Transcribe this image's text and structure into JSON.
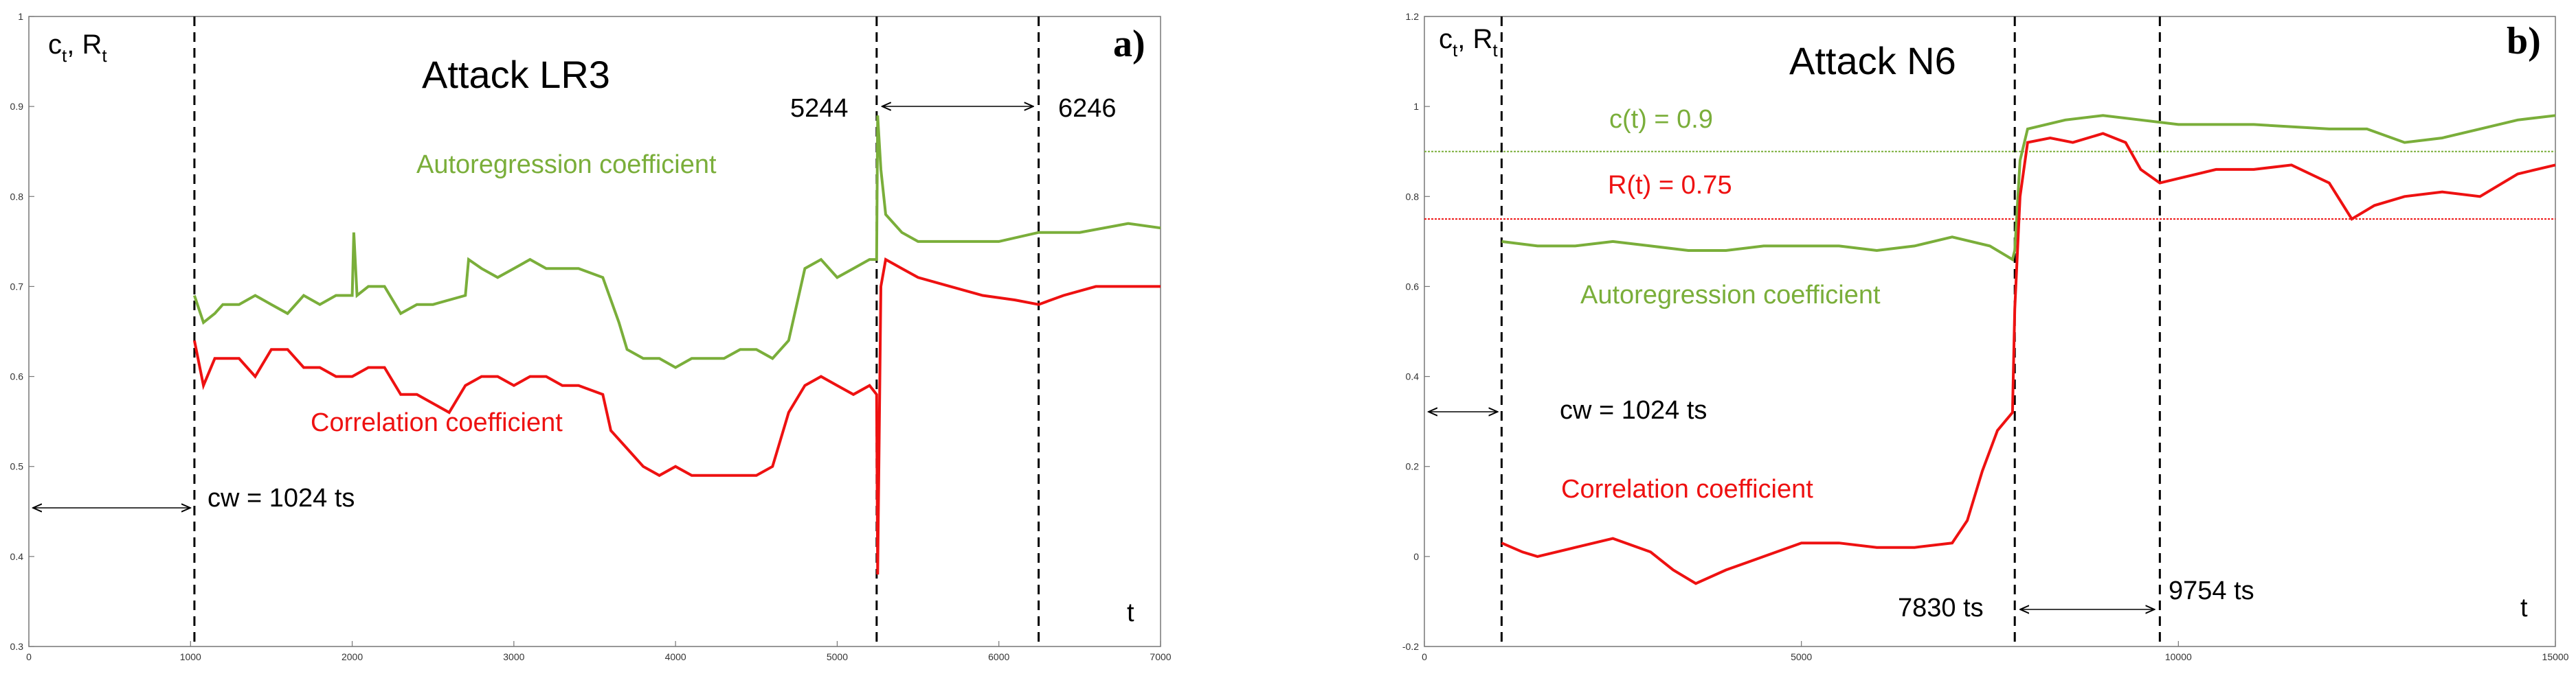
{
  "colors": {
    "green": "#7aae3a",
    "red": "#ee1111",
    "axis": "#555555",
    "ink": "#000000"
  },
  "chart_data": [
    {
      "type": "line",
      "panel_label": "a)",
      "title": "Attack  LR3",
      "ylabel_main": "c",
      "ylabel_sub1": "t",
      "ylabel_mid": ", R",
      "ylabel_sub2": "t",
      "xlabel": "t",
      "xlim": [
        0,
        7000
      ],
      "ylim": [
        0.3,
        1.0
      ],
      "x_ticks": [
        0,
        1000,
        2000,
        3000,
        4000,
        5000,
        6000,
        7000
      ],
      "x_tick_labels": [
        "0",
        "1000",
        "2000",
        "3000",
        "4000",
        "5000",
        "6000",
        "7000"
      ],
      "y_ticks": [
        0.3,
        0.4,
        0.5,
        0.6,
        0.7,
        0.8,
        0.9,
        1.0
      ],
      "y_tick_labels": [
        "0.3",
        "0.4",
        "0.5",
        "0.6",
        "0.7",
        "0.8",
        "0.9",
        "1"
      ],
      "vlines": [
        1024,
        5244,
        6246
      ],
      "series": [
        {
          "name": "Autoregression coefficient",
          "color": "#7aae3a",
          "points": [
            [
              1024,
              0.69
            ],
            [
              1080,
              0.66
            ],
            [
              1150,
              0.67
            ],
            [
              1200,
              0.68
            ],
            [
              1300,
              0.68
            ],
            [
              1400,
              0.69
            ],
            [
              1500,
              0.68
            ],
            [
              1600,
              0.67
            ],
            [
              1700,
              0.69
            ],
            [
              1800,
              0.68
            ],
            [
              1900,
              0.69
            ],
            [
              2000,
              0.69
            ],
            [
              2010,
              0.76
            ],
            [
              2030,
              0.69
            ],
            [
              2100,
              0.7
            ],
            [
              2200,
              0.7
            ],
            [
              2300,
              0.67
            ],
            [
              2400,
              0.68
            ],
            [
              2500,
              0.68
            ],
            [
              2700,
              0.69
            ],
            [
              2720,
              0.73
            ],
            [
              2800,
              0.72
            ],
            [
              2900,
              0.71
            ],
            [
              3000,
              0.72
            ],
            [
              3100,
              0.73
            ],
            [
              3200,
              0.72
            ],
            [
              3300,
              0.72
            ],
            [
              3400,
              0.72
            ],
            [
              3550,
              0.71
            ],
            [
              3650,
              0.66
            ],
            [
              3700,
              0.63
            ],
            [
              3800,
              0.62
            ],
            [
              3900,
              0.62
            ],
            [
              4000,
              0.61
            ],
            [
              4100,
              0.62
            ],
            [
              4200,
              0.62
            ],
            [
              4300,
              0.62
            ],
            [
              4400,
              0.63
            ],
            [
              4500,
              0.63
            ],
            [
              4600,
              0.62
            ],
            [
              4700,
              0.64
            ],
            [
              4800,
              0.72
            ],
            [
              4900,
              0.73
            ],
            [
              5000,
              0.71
            ],
            [
              5100,
              0.72
            ],
            [
              5200,
              0.73
            ],
            [
              5244,
              0.73
            ],
            [
              5250,
              0.89
            ],
            [
              5270,
              0.83
            ],
            [
              5300,
              0.78
            ],
            [
              5400,
              0.76
            ],
            [
              5500,
              0.75
            ],
            [
              5600,
              0.75
            ],
            [
              5800,
              0.75
            ],
            [
              6000,
              0.75
            ],
            [
              6246,
              0.76
            ],
            [
              6500,
              0.76
            ],
            [
              6800,
              0.77
            ],
            [
              7000,
              0.765
            ]
          ]
        },
        {
          "name": "Correlation coefficient",
          "color": "#ee1111",
          "points": [
            [
              1024,
              0.64
            ],
            [
              1080,
              0.59
            ],
            [
              1150,
              0.62
            ],
            [
              1300,
              0.62
            ],
            [
              1400,
              0.6
            ],
            [
              1500,
              0.63
            ],
            [
              1600,
              0.63
            ],
            [
              1700,
              0.61
            ],
            [
              1800,
              0.61
            ],
            [
              1900,
              0.6
            ],
            [
              2000,
              0.6
            ],
            [
              2100,
              0.61
            ],
            [
              2200,
              0.61
            ],
            [
              2300,
              0.58
            ],
            [
              2400,
              0.58
            ],
            [
              2500,
              0.57
            ],
            [
              2600,
              0.56
            ],
            [
              2700,
              0.59
            ],
            [
              2800,
              0.6
            ],
            [
              2900,
              0.6
            ],
            [
              3000,
              0.59
            ],
            [
              3100,
              0.6
            ],
            [
              3200,
              0.6
            ],
            [
              3300,
              0.59
            ],
            [
              3400,
              0.59
            ],
            [
              3550,
              0.58
            ],
            [
              3600,
              0.54
            ],
            [
              3700,
              0.52
            ],
            [
              3800,
              0.5
            ],
            [
              3900,
              0.49
            ],
            [
              4000,
              0.5
            ],
            [
              4100,
              0.49
            ],
            [
              4200,
              0.49
            ],
            [
              4300,
              0.49
            ],
            [
              4400,
              0.49
            ],
            [
              4500,
              0.49
            ],
            [
              4600,
              0.5
            ],
            [
              4700,
              0.56
            ],
            [
              4800,
              0.59
            ],
            [
              4900,
              0.6
            ],
            [
              5000,
              0.59
            ],
            [
              5100,
              0.58
            ],
            [
              5200,
              0.59
            ],
            [
              5244,
              0.58
            ],
            [
              5250,
              0.38
            ],
            [
              5270,
              0.7
            ],
            [
              5300,
              0.73
            ],
            [
              5400,
              0.72
            ],
            [
              5500,
              0.71
            ],
            [
              5700,
              0.7
            ],
            [
              5900,
              0.69
            ],
            [
              6100,
              0.685
            ],
            [
              6246,
              0.68
            ],
            [
              6400,
              0.69
            ],
            [
              6600,
              0.7
            ],
            [
              6800,
              0.7
            ],
            [
              7000,
              0.7
            ]
          ]
        }
      ],
      "annotations": {
        "autoreg_label": "Autoregression coefficient",
        "corr_label": "Correlation coefficient",
        "cw_label": "cw = 1024 ts",
        "mark_left": "5244",
        "mark_right": "6246"
      }
    },
    {
      "type": "line",
      "panel_label": "b)",
      "title": "Attack  N6",
      "ylabel_main": "c",
      "ylabel_sub1": "t",
      "ylabel_mid": ", R",
      "ylabel_sub2": "t",
      "xlabel": "t",
      "xlim": [
        0,
        15000
      ],
      "ylim": [
        -0.2,
        1.2
      ],
      "x_ticks": [
        0,
        5000,
        10000,
        15000
      ],
      "x_tick_labels": [
        "0",
        "5000",
        "10000",
        "15000"
      ],
      "y_ticks": [
        -0.2,
        0,
        0.2,
        0.4,
        0.6,
        0.8,
        1.0,
        1.2
      ],
      "y_tick_labels": [
        "-0.2",
        "0",
        "0.2",
        "0.4",
        "0.6",
        "0.8",
        "1",
        "1.2"
      ],
      "vlines": [
        1024,
        7830,
        9754
      ],
      "hlines": [
        {
          "value": 0.9,
          "label": "c(t) = 0.9",
          "color": "#7aae3a"
        },
        {
          "value": 0.75,
          "label": "R(t) = 0.75",
          "color": "#ee1111"
        }
      ],
      "series": [
        {
          "name": "Autoregression coefficient",
          "color": "#7aae3a",
          "points": [
            [
              1024,
              0.7
            ],
            [
              1500,
              0.69
            ],
            [
              2000,
              0.69
            ],
            [
              2500,
              0.7
            ],
            [
              3000,
              0.69
            ],
            [
              3500,
              0.68
            ],
            [
              4000,
              0.68
            ],
            [
              4500,
              0.69
            ],
            [
              5000,
              0.69
            ],
            [
              5500,
              0.69
            ],
            [
              6000,
              0.68
            ],
            [
              6500,
              0.69
            ],
            [
              7000,
              0.71
            ],
            [
              7500,
              0.69
            ],
            [
              7800,
              0.66
            ],
            [
              7830,
              0.68
            ],
            [
              7900,
              0.88
            ],
            [
              8000,
              0.95
            ],
            [
              8500,
              0.97
            ],
            [
              9000,
              0.98
            ],
            [
              9500,
              0.97
            ],
            [
              10000,
              0.96
            ],
            [
              11000,
              0.96
            ],
            [
              12000,
              0.95
            ],
            [
              12500,
              0.95
            ],
            [
              13000,
              0.92
            ],
            [
              13500,
              0.93
            ],
            [
              14000,
              0.95
            ],
            [
              14500,
              0.97
            ],
            [
              15000,
              0.98
            ]
          ]
        },
        {
          "name": "Correlation coefficient",
          "color": "#ee1111",
          "points": [
            [
              1024,
              0.03
            ],
            [
              1300,
              0.01
            ],
            [
              1500,
              0.0
            ],
            [
              2000,
              0.02
            ],
            [
              2500,
              0.04
            ],
            [
              3000,
              0.01
            ],
            [
              3300,
              -0.03
            ],
            [
              3600,
              -0.06
            ],
            [
              4000,
              -0.03
            ],
            [
              4500,
              0.0
            ],
            [
              5000,
              0.03
            ],
            [
              5500,
              0.03
            ],
            [
              6000,
              0.02
            ],
            [
              6500,
              0.02
            ],
            [
              7000,
              0.03
            ],
            [
              7200,
              0.08
            ],
            [
              7400,
              0.19
            ],
            [
              7600,
              0.28
            ],
            [
              7800,
              0.32
            ],
            [
              7830,
              0.55
            ],
            [
              7900,
              0.8
            ],
            [
              8000,
              0.92
            ],
            [
              8300,
              0.93
            ],
            [
              8600,
              0.92
            ],
            [
              9000,
              0.94
            ],
            [
              9300,
              0.92
            ],
            [
              9500,
              0.86
            ],
            [
              9754,
              0.83
            ],
            [
              10000,
              0.84
            ],
            [
              10500,
              0.86
            ],
            [
              11000,
              0.86
            ],
            [
              11500,
              0.87
            ],
            [
              12000,
              0.83
            ],
            [
              12300,
              0.75
            ],
            [
              12600,
              0.78
            ],
            [
              13000,
              0.8
            ],
            [
              13500,
              0.81
            ],
            [
              14000,
              0.8
            ],
            [
              14500,
              0.85
            ],
            [
              15000,
              0.87
            ]
          ]
        }
      ],
      "annotations": {
        "autoreg_label": "Autoregression coefficient",
        "corr_label": "Correlation coefficient",
        "cw_label": "cw = 1024 ts",
        "mark_left": "7830 ts",
        "mark_right": "9754 ts"
      }
    }
  ]
}
